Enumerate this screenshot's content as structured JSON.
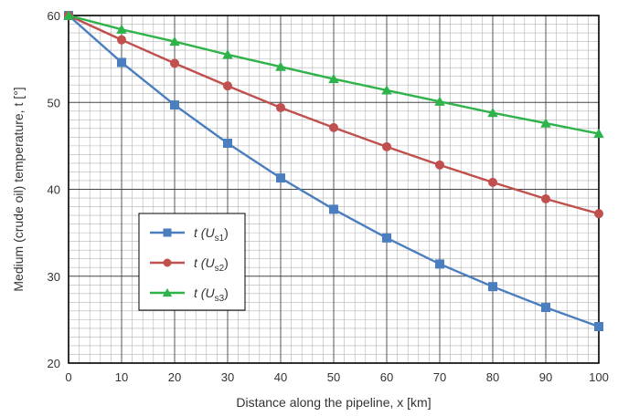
{
  "chart_data": {
    "type": "line",
    "x": [
      0,
      10,
      20,
      30,
      40,
      50,
      60,
      70,
      80,
      90,
      100
    ],
    "series": [
      {
        "name": "t (Us1)",
        "color": "#4a7ebf",
        "marker": "square",
        "values": [
          60,
          54.6,
          49.7,
          45.3,
          41.3,
          37.7,
          34.4,
          31.4,
          28.8,
          26.4,
          24.2
        ]
      },
      {
        "name": "t (Us2)",
        "color": "#c0504d",
        "marker": "circle",
        "values": [
          60,
          57.2,
          54.5,
          51.9,
          49.4,
          47.1,
          44.9,
          42.8,
          40.8,
          38.9,
          37.2
        ]
      },
      {
        "name": "t (Us3)",
        "color": "#2eb34a",
        "marker": "triangle",
        "values": [
          60,
          58.4,
          57.0,
          55.5,
          54.1,
          52.7,
          51.4,
          50.1,
          48.8,
          47.6,
          46.4
        ]
      }
    ],
    "xlabel": "Distance along the pipeline, x [km]",
    "ylabel": "Medium (crude oil) temperature, t [°]",
    "xlim": [
      0,
      100
    ],
    "ylim": [
      20,
      60
    ],
    "x_ticks": [
      "0",
      "10",
      "20",
      "30",
      "40",
      "50",
      "60",
      "70",
      "80",
      "90",
      "100"
    ],
    "y_ticks": [
      "20",
      "30",
      "40",
      "50",
      "60"
    ],
    "minor_grid": true,
    "major_grid": true,
    "legend_position": "left-center",
    "legend": [
      {
        "prefix": "t (U",
        "sub": "s1",
        "suffix": ")"
      },
      {
        "prefix": "t (U",
        "sub": "s2",
        "suffix": ")"
      },
      {
        "prefix": "t (U",
        "sub": "s3",
        "suffix": ")"
      }
    ]
  }
}
